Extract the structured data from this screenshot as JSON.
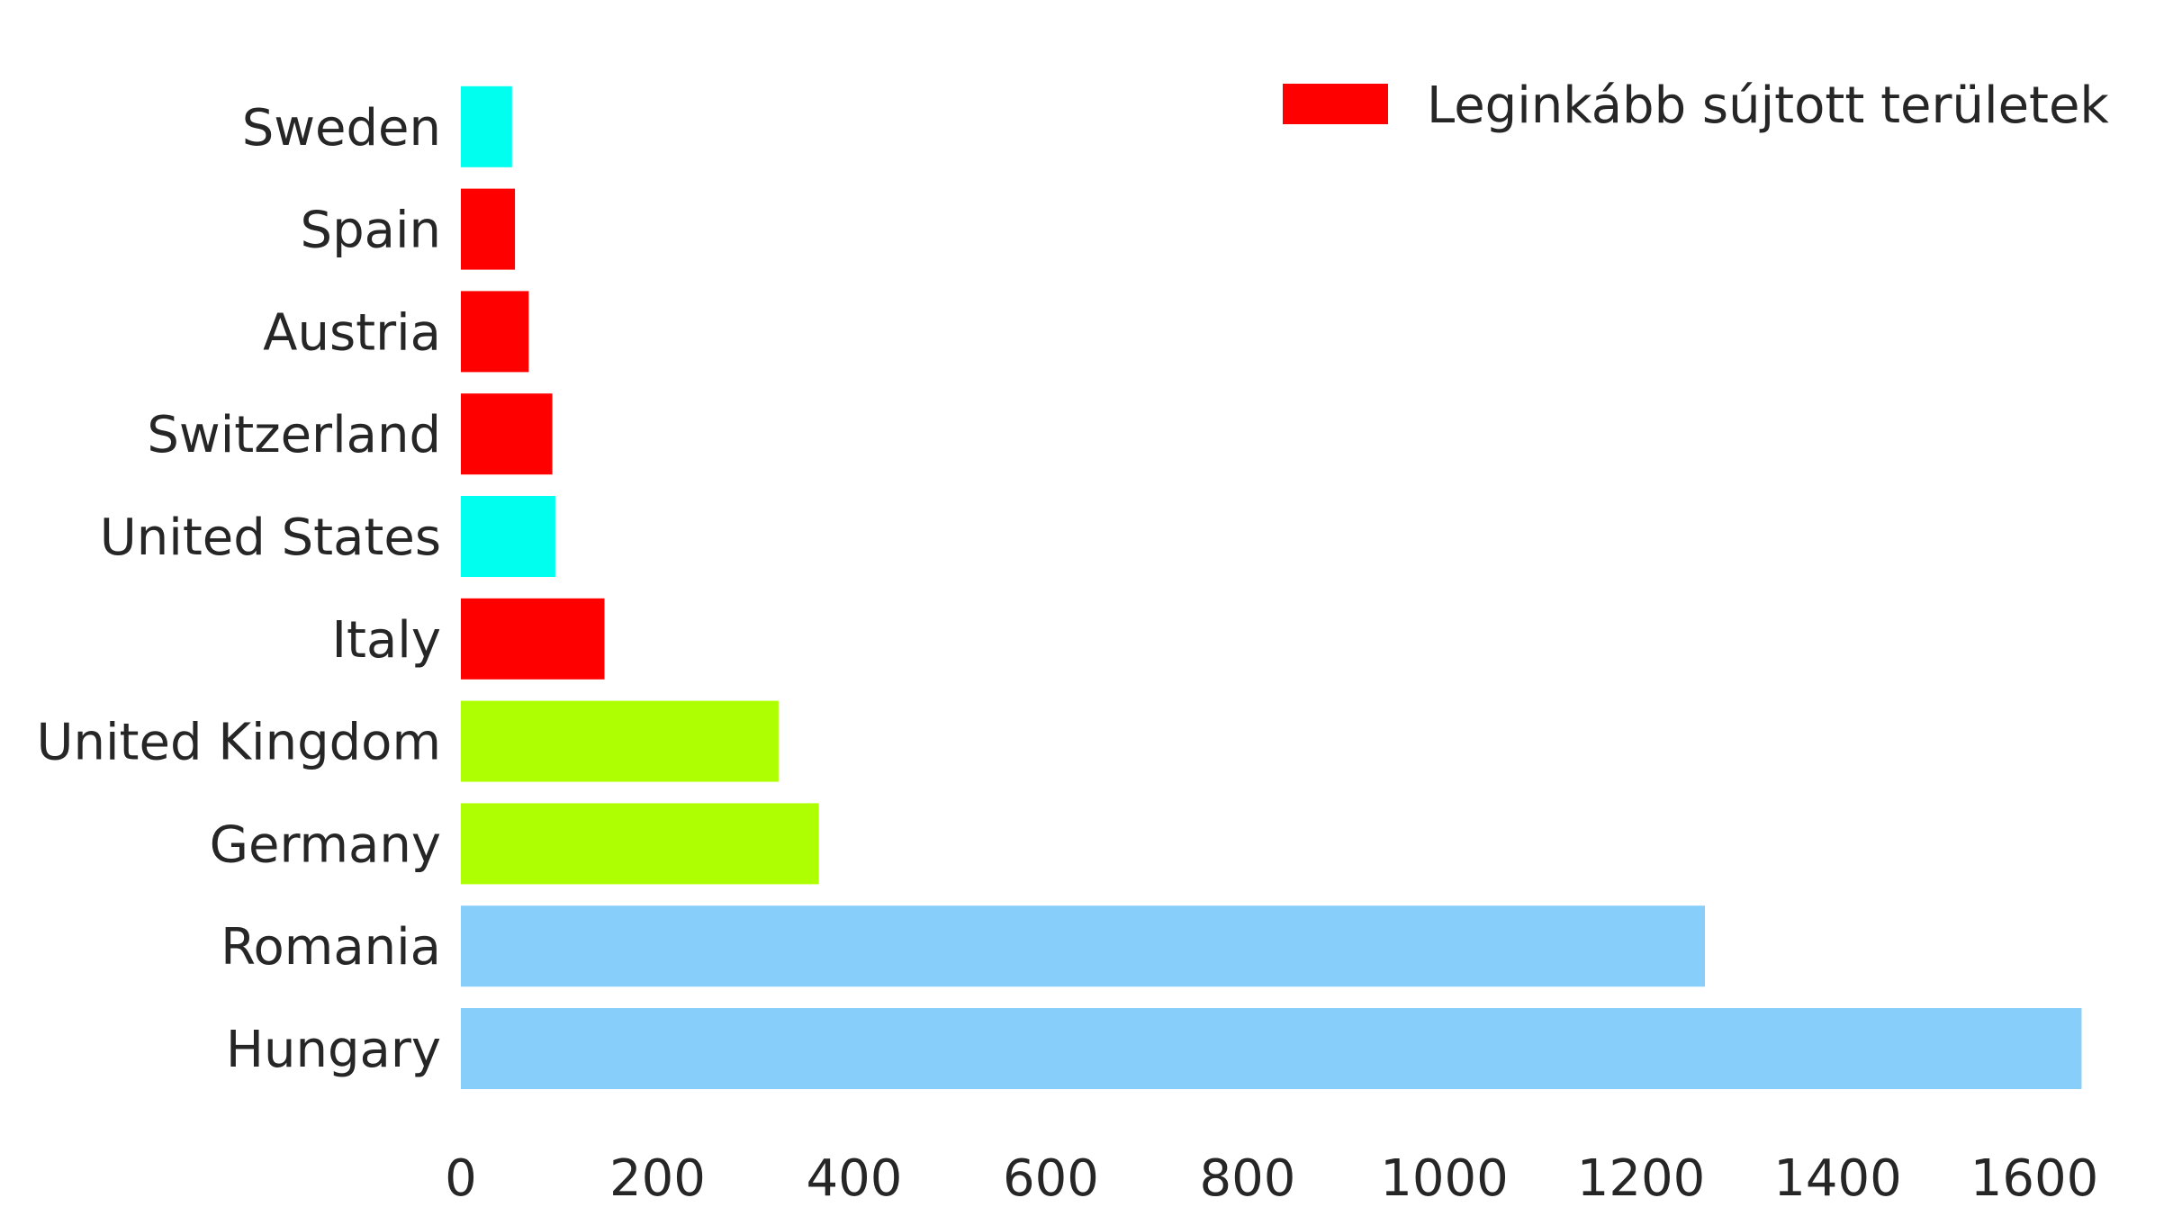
{
  "chart_data": {
    "type": "bar",
    "orientation": "horizontal",
    "categories": [
      "Hungary",
      "Romania",
      "Germany",
      "United Kingdom",
      "Italy",
      "United States",
      "Switzerland",
      "Austria",
      "Spain",
      "Sweden"
    ],
    "values": [
      1648,
      1265,
      364,
      323,
      146,
      96,
      93,
      69,
      55,
      52
    ],
    "bar_colors": [
      "#87CEFA",
      "#87CEFA",
      "#ADFF02",
      "#ADFF02",
      "#FF0000",
      "#00FFEE",
      "#FF0000",
      "#FF0000",
      "#FF0000",
      "#00FFEE"
    ],
    "xlim": [
      0,
      1680
    ],
    "xticks": [
      0,
      200,
      400,
      600,
      800,
      1000,
      1200,
      1400,
      1600
    ],
    "grid": false,
    "legend": {
      "position": "top-right",
      "entries": [
        {
          "label": "Leginkább sújtott területek",
          "color": "#FF0000"
        }
      ]
    }
  }
}
